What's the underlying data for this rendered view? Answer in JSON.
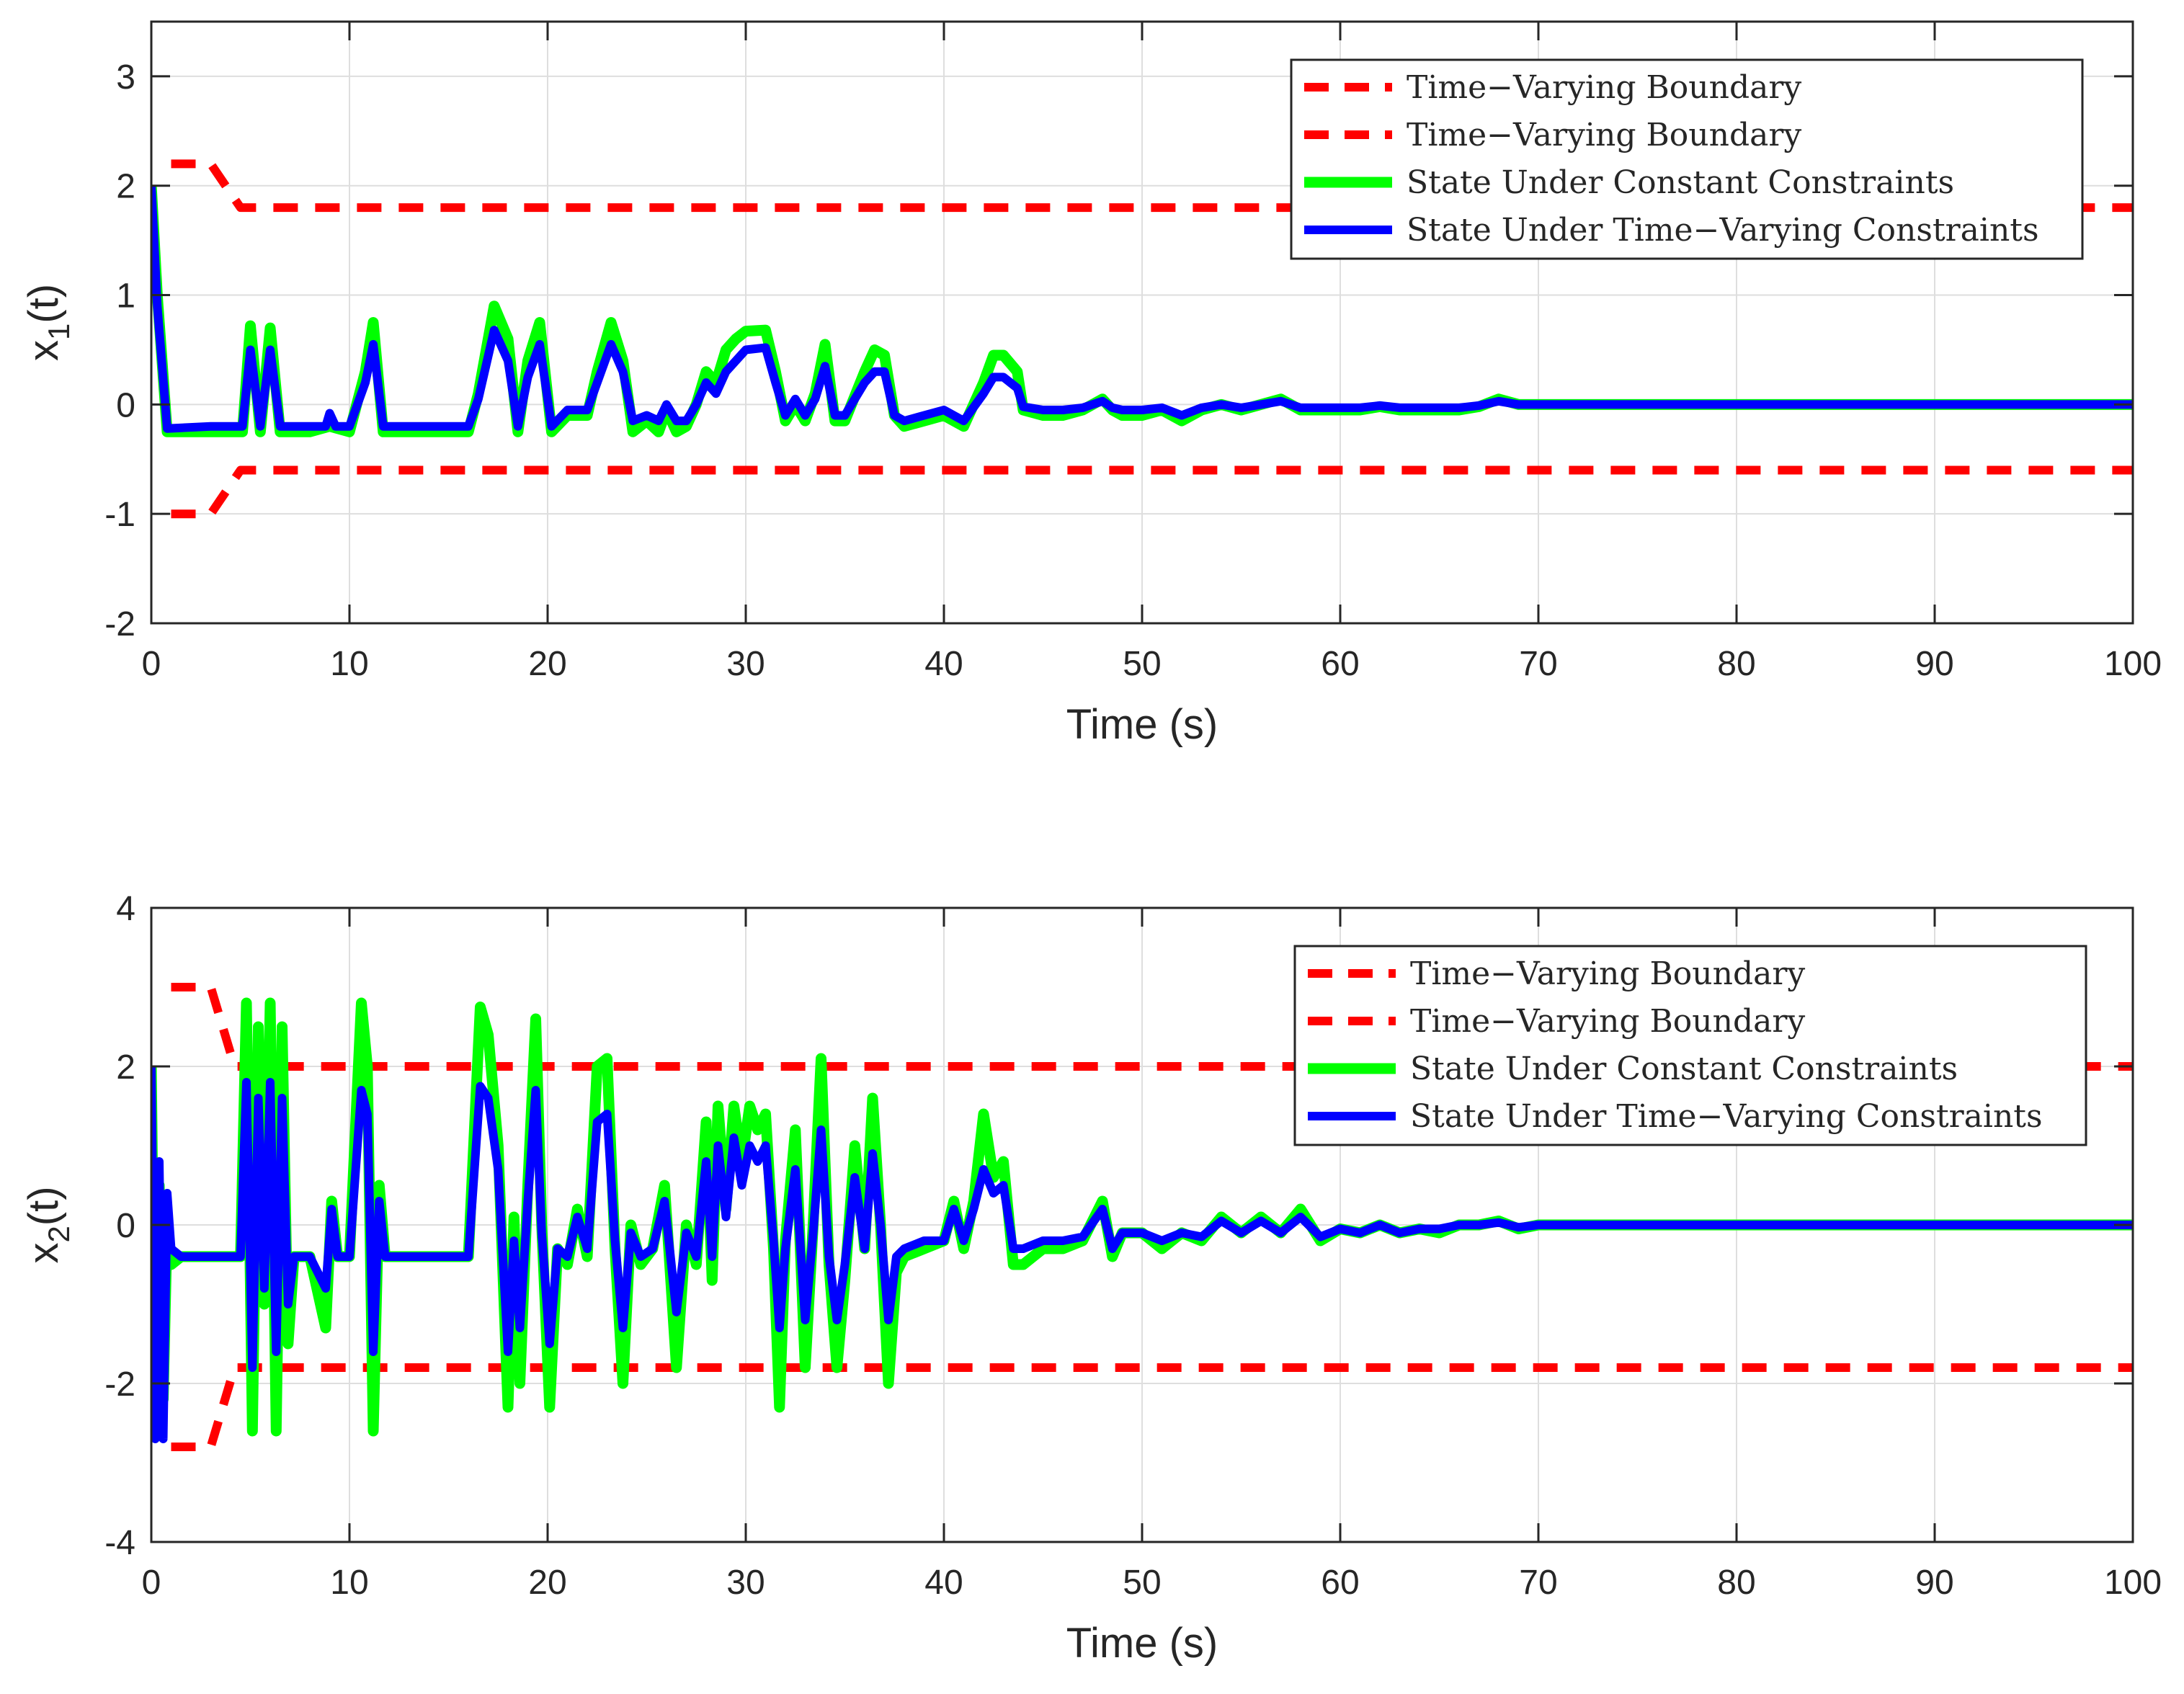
{
  "colors": {
    "boundary": "#ff0000",
    "constant": "#00ff00",
    "varying": "#0000ff",
    "grid": "#dedede",
    "axis": "#262626"
  },
  "chart_data": [
    {
      "type": "line",
      "ylabel_main": "x",
      "ylabel_sub": "1",
      "ylabel_tail": "(t)",
      "xlabel": "Time (s)",
      "xlim": [
        0,
        100
      ],
      "ylim": [
        -2,
        3.5
      ],
      "xticks": [
        0,
        10,
        20,
        30,
        40,
        50,
        60,
        70,
        80,
        90,
        100
      ],
      "yticks": [
        -2,
        -1,
        0,
        1,
        2,
        3
      ],
      "grid": true,
      "legend_position": "top-right",
      "legend": [
        "Time−Varying Boundary",
        "Time−Varying Boundary",
        "State Under Constant Constraints",
        "State Under Time−Varying Constraints"
      ],
      "series": [
        {
          "name": "Time−Varying Boundary",
          "style": "boundary",
          "x": [
            1,
            2,
            3,
            4.5,
            100
          ],
          "y": [
            2.2,
            2.2,
            2.2,
            1.8,
            1.8
          ]
        },
        {
          "name": "Time−Varying Boundary",
          "style": "boundary",
          "x": [
            1,
            2,
            3,
            4.5,
            100
          ],
          "y": [
            -1.0,
            -1.0,
            -1.0,
            -0.6,
            -0.6
          ]
        },
        {
          "name": "State Under Constant Constraints",
          "style": "constant",
          "x": [
            0,
            0.3,
            0.8,
            3,
            4.6,
            5,
            5.5,
            6,
            6.5,
            7,
            8,
            9,
            10,
            10.8,
            11.2,
            11.7,
            12,
            14,
            16,
            16.5,
            17.3,
            18,
            18.5,
            19,
            19.6,
            20.2,
            21,
            22,
            22.5,
            23.2,
            23.8,
            24.3,
            25,
            25.6,
            26,
            26.5,
            27,
            27.5,
            28,
            28.5,
            29,
            29.5,
            30,
            31,
            31.5,
            32,
            32.5,
            33,
            33.5,
            34,
            34.5,
            35,
            36,
            36.5,
            37,
            37.5,
            38,
            39,
            40,
            41,
            42,
            42.5,
            43,
            43.7,
            44,
            45,
            46,
            47,
            48,
            48.5,
            49,
            50,
            51,
            52,
            53,
            54,
            55,
            56,
            57,
            58,
            59,
            60,
            61,
            62,
            63,
            64,
            65,
            66,
            67,
            68,
            69,
            70,
            72,
            74,
            76,
            100
          ],
          "y": [
            2.0,
            1.0,
            -0.25,
            -0.25,
            -0.25,
            0.72,
            -0.25,
            0.7,
            -0.25,
            -0.25,
            -0.25,
            -0.2,
            -0.25,
            0.3,
            0.75,
            -0.25,
            -0.25,
            -0.25,
            -0.25,
            0.1,
            0.9,
            0.6,
            -0.25,
            0.4,
            0.75,
            -0.25,
            -0.1,
            -0.1,
            0.3,
            0.75,
            0.4,
            -0.25,
            -0.15,
            -0.25,
            -0.05,
            -0.25,
            -0.2,
            0.0,
            0.3,
            0.2,
            0.5,
            0.6,
            0.67,
            0.68,
            0.3,
            -0.15,
            0.0,
            -0.15,
            0.1,
            0.55,
            -0.15,
            -0.15,
            0.3,
            0.5,
            0.45,
            -0.1,
            -0.2,
            -0.15,
            -0.1,
            -0.2,
            0.2,
            0.45,
            0.45,
            0.3,
            -0.05,
            -0.1,
            -0.1,
            -0.05,
            0.05,
            -0.05,
            -0.1,
            -0.1,
            -0.05,
            -0.15,
            -0.05,
            0.0,
            -0.05,
            0.0,
            0.05,
            -0.05,
            -0.05,
            -0.05,
            -0.05,
            -0.02,
            -0.05,
            -0.05,
            -0.05,
            -0.05,
            -0.02,
            0.05,
            0.0,
            0.0,
            0.0,
            0.0,
            0.0,
            0.0
          ]
        },
        {
          "name": "State Under Time−Varying Constraints",
          "style": "varying",
          "x": [
            0,
            0.3,
            0.8,
            3,
            4.6,
            5,
            5.5,
            6,
            6.5,
            7,
            8,
            8.8,
            9,
            9.3,
            10,
            10.8,
            11.2,
            11.7,
            12,
            14,
            16,
            16.5,
            17.3,
            18,
            18.5,
            19,
            19.6,
            20.2,
            21,
            22,
            22.5,
            23.2,
            23.8,
            24.3,
            25,
            25.6,
            26,
            26.5,
            27,
            27.5,
            28,
            28.5,
            29,
            29.5,
            30,
            31,
            31.5,
            32,
            32.5,
            33,
            33.5,
            34,
            34.5,
            35,
            36,
            36.5,
            37,
            37.5,
            38,
            39,
            40,
            41,
            42,
            42.5,
            43,
            43.7,
            44,
            45,
            46,
            47,
            48,
            48.5,
            49,
            50,
            51,
            52,
            53,
            54,
            55,
            56,
            57,
            58,
            59,
            60,
            61,
            62,
            63,
            64,
            65,
            66,
            67,
            68,
            69,
            70,
            72,
            74,
            76,
            100
          ],
          "y": [
            2.0,
            0.9,
            -0.22,
            -0.2,
            -0.2,
            0.5,
            -0.2,
            0.5,
            -0.2,
            -0.2,
            -0.2,
            -0.2,
            -0.08,
            -0.2,
            -0.2,
            0.2,
            0.55,
            -0.2,
            -0.2,
            -0.2,
            -0.2,
            0.05,
            0.68,
            0.4,
            -0.2,
            0.25,
            0.55,
            -0.2,
            -0.05,
            -0.05,
            0.2,
            0.55,
            0.3,
            -0.15,
            -0.1,
            -0.15,
            0.0,
            -0.15,
            -0.15,
            0.0,
            0.2,
            0.1,
            0.3,
            0.4,
            0.5,
            0.52,
            0.2,
            -0.1,
            0.05,
            -0.1,
            0.05,
            0.35,
            -0.1,
            -0.1,
            0.2,
            0.3,
            0.3,
            -0.1,
            -0.15,
            -0.1,
            -0.05,
            -0.15,
            0.1,
            0.25,
            0.25,
            0.15,
            -0.02,
            -0.05,
            -0.05,
            -0.03,
            0.03,
            -0.03,
            -0.05,
            -0.05,
            -0.03,
            -0.1,
            -0.03,
            0.0,
            -0.03,
            0.0,
            0.03,
            -0.03,
            -0.03,
            -0.03,
            -0.03,
            -0.01,
            -0.03,
            -0.03,
            -0.03,
            -0.03,
            -0.01,
            0.03,
            0.0,
            0.0,
            0.0,
            0.0,
            0.0,
            0.0
          ]
        }
      ]
    },
    {
      "type": "line",
      "ylabel_main": "x",
      "ylabel_sub": "2",
      "ylabel_tail": "(t)",
      "xlabel": "Time (s)",
      "xlim": [
        0,
        100
      ],
      "ylim": [
        -4,
        4
      ],
      "xticks": [
        0,
        10,
        20,
        30,
        40,
        50,
        60,
        70,
        80,
        90,
        100
      ],
      "yticks": [
        -4,
        -2,
        0,
        2,
        4
      ],
      "grid": true,
      "legend_position": "top-right",
      "legend": [
        "Time−Varying Boundary",
        "Time−Varying Boundary",
        "State Under Constant Constraints",
        "State Under Time−Varying Constraints"
      ],
      "series": [
        {
          "name": "Time−Varying Boundary",
          "style": "boundary",
          "x": [
            1,
            2,
            3,
            4.2,
            100
          ],
          "y": [
            3.0,
            3.0,
            3.0,
            2.0,
            2.0
          ]
        },
        {
          "name": "Time−Varying Boundary",
          "style": "boundary",
          "x": [
            1,
            2,
            3,
            4.2,
            100
          ],
          "y": [
            -2.8,
            -2.8,
            -2.8,
            -1.8,
            -1.8
          ]
        },
        {
          "name": "State Under Constant Constraints",
          "style": "constant",
          "x": [
            0,
            0.2,
            0.4,
            0.6,
            0.8,
            1.0,
            1.5,
            3,
            4.5,
            4.8,
            5.1,
            5.4,
            5.7,
            6,
            6.3,
            6.6,
            6.9,
            7.2,
            8,
            8.8,
            9.1,
            9.4,
            10,
            10.6,
            10.9,
            11.2,
            11.5,
            11.8,
            12.2,
            14,
            16,
            16.6,
            17,
            17.5,
            18,
            18.3,
            18.6,
            19,
            19.4,
            19.7,
            20.1,
            20.5,
            21,
            21.5,
            22,
            22.5,
            23,
            23.4,
            23.8,
            24.2,
            24.7,
            25.3,
            25.9,
            26.5,
            27,
            27.5,
            28,
            28.3,
            28.6,
            29,
            29.4,
            29.8,
            30.2,
            30.6,
            31,
            31.4,
            31.7,
            32,
            32.5,
            33,
            33.4,
            33.8,
            34.2,
            34.6,
            35,
            35.5,
            36,
            36.4,
            36.8,
            37.2,
            37.6,
            38,
            39,
            40,
            40.5,
            41,
            41.5,
            42,
            42.5,
            43,
            43.5,
            44,
            45,
            46,
            47,
            48,
            48.5,
            49,
            50,
            51,
            52,
            53,
            54,
            55,
            56,
            57,
            58,
            59,
            60,
            61,
            62,
            63,
            64,
            65,
            66,
            67,
            68,
            69,
            70,
            72,
            74,
            76,
            100
          ],
          "y": [
            2.0,
            -2.6,
            0.5,
            -2.2,
            0.0,
            -0.5,
            -0.4,
            -0.4,
            -0.4,
            2.8,
            -2.6,
            2.5,
            -1.0,
            2.8,
            -2.6,
            2.5,
            -1.5,
            -0.4,
            -0.4,
            -1.3,
            0.3,
            -0.4,
            -0.4,
            2.8,
            2.0,
            -2.6,
            0.5,
            -0.4,
            -0.4,
            -0.4,
            -0.4,
            2.75,
            2.4,
            1.0,
            -2.3,
            0.1,
            -2.0,
            0.5,
            2.6,
            0.0,
            -2.3,
            -0.3,
            -0.5,
            0.2,
            -0.4,
            2.0,
            2.1,
            -0.3,
            -2.0,
            0.0,
            -0.5,
            -0.3,
            0.5,
            -1.8,
            0.0,
            -0.5,
            1.3,
            -0.7,
            1.5,
            0.2,
            1.5,
            0.8,
            1.5,
            1.2,
            1.4,
            -0.3,
            -2.3,
            -0.2,
            1.2,
            -1.8,
            0.0,
            2.1,
            -0.5,
            -1.8,
            -0.7,
            1.0,
            -0.3,
            1.6,
            0.0,
            -2.0,
            -0.6,
            -0.4,
            -0.3,
            -0.2,
            0.3,
            -0.3,
            0.3,
            1.4,
            0.6,
            0.8,
            -0.5,
            -0.5,
            -0.3,
            -0.3,
            -0.2,
            0.3,
            -0.4,
            -0.1,
            -0.1,
            -0.3,
            -0.1,
            -0.2,
            0.1,
            -0.1,
            0.1,
            -0.1,
            0.2,
            -0.2,
            -0.05,
            -0.1,
            0.0,
            -0.1,
            -0.05,
            -0.1,
            0.0,
            0.0,
            0.05,
            -0.05,
            0.0,
            0.0,
            0.0,
            0.0,
            0.0
          ]
        },
        {
          "name": "State Under Time−Varying Constraints",
          "style": "varying",
          "x": [
            0,
            0.2,
            0.4,
            0.6,
            0.8,
            1.0,
            1.5,
            3,
            4.5,
            4.8,
            5.1,
            5.4,
            5.7,
            6,
            6.3,
            6.6,
            6.9,
            7.2,
            8,
            8.8,
            9.1,
            9.4,
            10,
            10.6,
            10.9,
            11.2,
            11.5,
            11.8,
            12.2,
            14,
            16,
            16.6,
            17,
            17.5,
            18,
            18.3,
            18.6,
            19,
            19.4,
            19.7,
            20.1,
            20.5,
            21,
            21.5,
            22,
            22.5,
            23,
            23.4,
            23.8,
            24.2,
            24.7,
            25.3,
            25.9,
            26.5,
            27,
            27.5,
            28,
            28.3,
            28.6,
            29,
            29.4,
            29.8,
            30.2,
            30.6,
            31,
            31.4,
            31.7,
            32,
            32.5,
            33,
            33.4,
            33.8,
            34.2,
            34.6,
            35,
            35.5,
            36,
            36.4,
            36.8,
            37.2,
            37.6,
            38,
            39,
            40,
            40.5,
            41,
            41.5,
            42,
            42.5,
            43,
            43.5,
            44,
            45,
            46,
            47,
            48,
            48.5,
            49,
            50,
            51,
            52,
            53,
            54,
            55,
            56,
            57,
            58,
            59,
            60,
            61,
            62,
            63,
            64,
            65,
            66,
            67,
            68,
            69,
            70,
            72,
            74,
            76,
            100
          ],
          "y": [
            2.0,
            -2.7,
            0.8,
            -2.7,
            0.4,
            -0.3,
            -0.4,
            -0.4,
            -0.4,
            1.8,
            -1.8,
            1.6,
            -0.8,
            1.8,
            -1.6,
            1.6,
            -1.0,
            -0.4,
            -0.4,
            -0.8,
            0.2,
            -0.4,
            -0.4,
            1.7,
            1.4,
            -1.6,
            0.3,
            -0.4,
            -0.4,
            -0.4,
            -0.4,
            1.75,
            1.6,
            0.7,
            -1.6,
            -0.2,
            -1.3,
            0.3,
            1.7,
            -0.1,
            -1.5,
            -0.3,
            -0.4,
            0.1,
            -0.3,
            1.3,
            1.4,
            -0.2,
            -1.3,
            -0.1,
            -0.4,
            -0.3,
            0.3,
            -1.1,
            -0.1,
            -0.4,
            0.8,
            -0.4,
            1.0,
            0.1,
            1.1,
            0.5,
            1.0,
            0.8,
            1.0,
            -0.2,
            -1.3,
            -0.3,
            0.7,
            -1.2,
            -0.1,
            1.2,
            -0.4,
            -1.2,
            -0.5,
            0.6,
            -0.3,
            0.9,
            0.0,
            -1.2,
            -0.4,
            -0.3,
            -0.2,
            -0.2,
            0.2,
            -0.2,
            0.2,
            0.7,
            0.4,
            0.5,
            -0.3,
            -0.3,
            -0.2,
            -0.2,
            -0.15,
            0.2,
            -0.3,
            -0.1,
            -0.1,
            -0.2,
            -0.1,
            -0.15,
            0.05,
            -0.1,
            0.05,
            -0.1,
            0.1,
            -0.15,
            -0.05,
            -0.1,
            0.0,
            -0.1,
            -0.05,
            -0.05,
            0.0,
            0.0,
            0.03,
            -0.03,
            0.0,
            0.0,
            0.0,
            0.0,
            0.0
          ]
        }
      ]
    }
  ]
}
